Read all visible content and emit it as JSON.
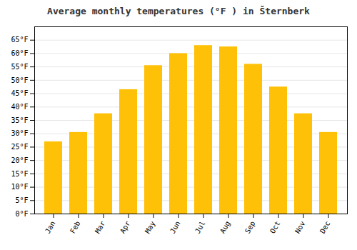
{
  "chart_data": {
    "type": "bar",
    "title": "Average monthly temperatures (°F ) in Šternberk",
    "categories": [
      "Jan",
      "Feb",
      "Mar",
      "Apr",
      "May",
      "Jun",
      "Jul",
      "Aug",
      "Sep",
      "Oct",
      "Nov",
      "Dec"
    ],
    "values": [
      27,
      30.5,
      37.5,
      46.5,
      55.5,
      60,
      63,
      62.5,
      56,
      47.5,
      37.5,
      30.5
    ],
    "color": "#FFC107",
    "ylim": [
      0,
      70
    ],
    "yticks": [
      {
        "value": 0,
        "label": "0°F"
      },
      {
        "value": 5,
        "label": "5°F"
      },
      {
        "value": 10,
        "label": "10°F"
      },
      {
        "value": 15,
        "label": "15°F"
      },
      {
        "value": 20,
        "label": "20°F"
      },
      {
        "value": 25,
        "label": "25°F"
      },
      {
        "value": 30,
        "label": "30°F"
      },
      {
        "value": 35,
        "label": "35°F"
      },
      {
        "value": 40,
        "label": "40°F"
      },
      {
        "value": 45,
        "label": "45°F"
      },
      {
        "value": 50,
        "label": "50°F"
      },
      {
        "value": 55,
        "label": "55°F"
      },
      {
        "value": 60,
        "label": "60°F"
      },
      {
        "value": 65,
        "label": "65°F"
      }
    ],
    "grid": true
  }
}
